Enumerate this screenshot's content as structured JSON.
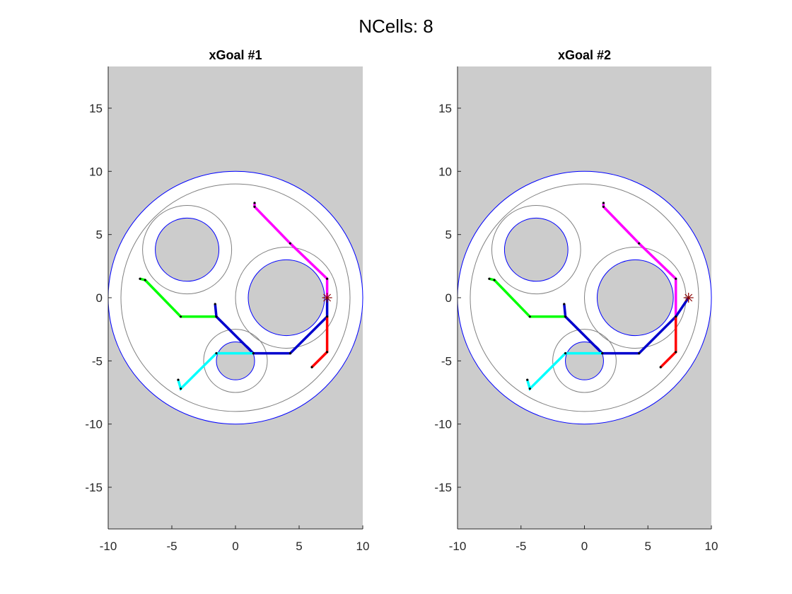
{
  "figure_title": "NCells: 8",
  "colors": {
    "axes_bg": "#cccccc",
    "outer_boundary": "#0000ff",
    "obstacle_fill": "#cccccc",
    "guide_circle": "#808080",
    "goal_marker": "#8b0000"
  },
  "chart_data": [
    {
      "type": "line",
      "title": "xGoal #1",
      "xlim": [
        -10,
        10
      ],
      "ylim": [
        -18.3,
        18.3
      ],
      "xticks": [
        -10,
        -5,
        0,
        5,
        10
      ],
      "yticks": [
        -15,
        -10,
        -5,
        0,
        5,
        10,
        15
      ],
      "xtick_labels": [
        "-10",
        "-5",
        "0",
        "5",
        "10"
      ],
      "ytick_labels": [
        "-15",
        "-10",
        "-5",
        "0",
        "5",
        "10",
        "15"
      ],
      "boundary": {
        "center": [
          0,
          0
        ],
        "radius": 10
      },
      "guide_circles": [
        {
          "center": [
            0,
            0
          ],
          "radius": 9
        },
        {
          "center": [
            -3.8,
            3.8
          ],
          "radius": 3.5
        },
        {
          "center": [
            4,
            0
          ],
          "radius": 4
        },
        {
          "center": [
            0,
            -5
          ],
          "radius": 2.5
        }
      ],
      "obstacles": [
        {
          "center": [
            -3.8,
            3.8
          ],
          "radius": 2.5
        },
        {
          "center": [
            4,
            0
          ],
          "radius": 3
        },
        {
          "center": [
            0,
            -5
          ],
          "radius": 1.5
        }
      ],
      "goal": [
        7.2,
        0
      ],
      "series": [
        {
          "color": "#ff00ff",
          "x": [
            1.5,
            1.5,
            4.3,
            7.2,
            7.2
          ],
          "y": [
            7.5,
            7.2,
            4.3,
            1.5,
            -0.2
          ]
        },
        {
          "color": "#00ff00",
          "x": [
            -7.5,
            -7.1,
            -4.3,
            -1.5
          ],
          "y": [
            1.5,
            1.4,
            -1.5,
            -1.5
          ]
        },
        {
          "color": "#0000cd",
          "x": [
            -1.6,
            -1.5,
            1.4,
            4.3,
            7.2,
            7.2
          ],
          "y": [
            -0.5,
            -1.5,
            -4.4,
            -4.4,
            -1.5,
            0
          ]
        },
        {
          "color": "#00ffff",
          "x": [
            -4.5,
            -4.3,
            -1.5,
            1.4
          ],
          "y": [
            -6.5,
            -7.2,
            -4.4,
            -4.4
          ]
        },
        {
          "color": "#ff0000",
          "x": [
            6.0,
            7.2,
            7.2
          ],
          "y": [
            -5.5,
            -4.3,
            -1.5
          ]
        }
      ]
    },
    {
      "type": "line",
      "title": "xGoal #2",
      "xlim": [
        -10,
        10
      ],
      "ylim": [
        -18.3,
        18.3
      ],
      "xticks": [
        -10,
        -5,
        0,
        5,
        10
      ],
      "yticks": [
        -15,
        -10,
        -5,
        0,
        5,
        10,
        15
      ],
      "xtick_labels": [
        "-10",
        "-5",
        "0",
        "5",
        "10"
      ],
      "ytick_labels": [
        "-15",
        "-10",
        "-5",
        "0",
        "5",
        "10",
        "15"
      ],
      "boundary": {
        "center": [
          0,
          0
        ],
        "radius": 10
      },
      "guide_circles": [
        {
          "center": [
            0,
            0
          ],
          "radius": 9
        },
        {
          "center": [
            -3.8,
            3.8
          ],
          "radius": 3.5
        },
        {
          "center": [
            4,
            0
          ],
          "radius": 4
        },
        {
          "center": [
            0,
            -5
          ],
          "radius": 2.5
        }
      ],
      "obstacles": [
        {
          "center": [
            -3.8,
            3.8
          ],
          "radius": 2.5
        },
        {
          "center": [
            4,
            0
          ],
          "radius": 3
        },
        {
          "center": [
            0,
            -5
          ],
          "radius": 1.5
        }
      ],
      "goal": [
        8.2,
        0
      ],
      "series": [
        {
          "color": "#ff00ff",
          "x": [
            1.5,
            1.5,
            4.3,
            7.2,
            7.2
          ],
          "y": [
            7.5,
            7.2,
            4.3,
            1.5,
            -1.5
          ]
        },
        {
          "color": "#00ff00",
          "x": [
            -7.5,
            -7.1,
            -4.3,
            -1.5
          ],
          "y": [
            1.5,
            1.4,
            -1.5,
            -1.5
          ]
        },
        {
          "color": "#0000cd",
          "x": [
            -1.6,
            -1.5,
            1.4,
            4.3,
            7.2,
            8.2
          ],
          "y": [
            -0.5,
            -1.5,
            -4.4,
            -4.4,
            -1.5,
            0
          ]
        },
        {
          "color": "#00ffff",
          "x": [
            -4.5,
            -4.3,
            -1.5,
            1.4
          ],
          "y": [
            -6.5,
            -7.2,
            -4.4,
            -4.4
          ]
        },
        {
          "color": "#ff0000",
          "x": [
            6.0,
            7.2,
            7.2
          ],
          "y": [
            -5.5,
            -4.3,
            -1.5
          ]
        }
      ]
    }
  ]
}
